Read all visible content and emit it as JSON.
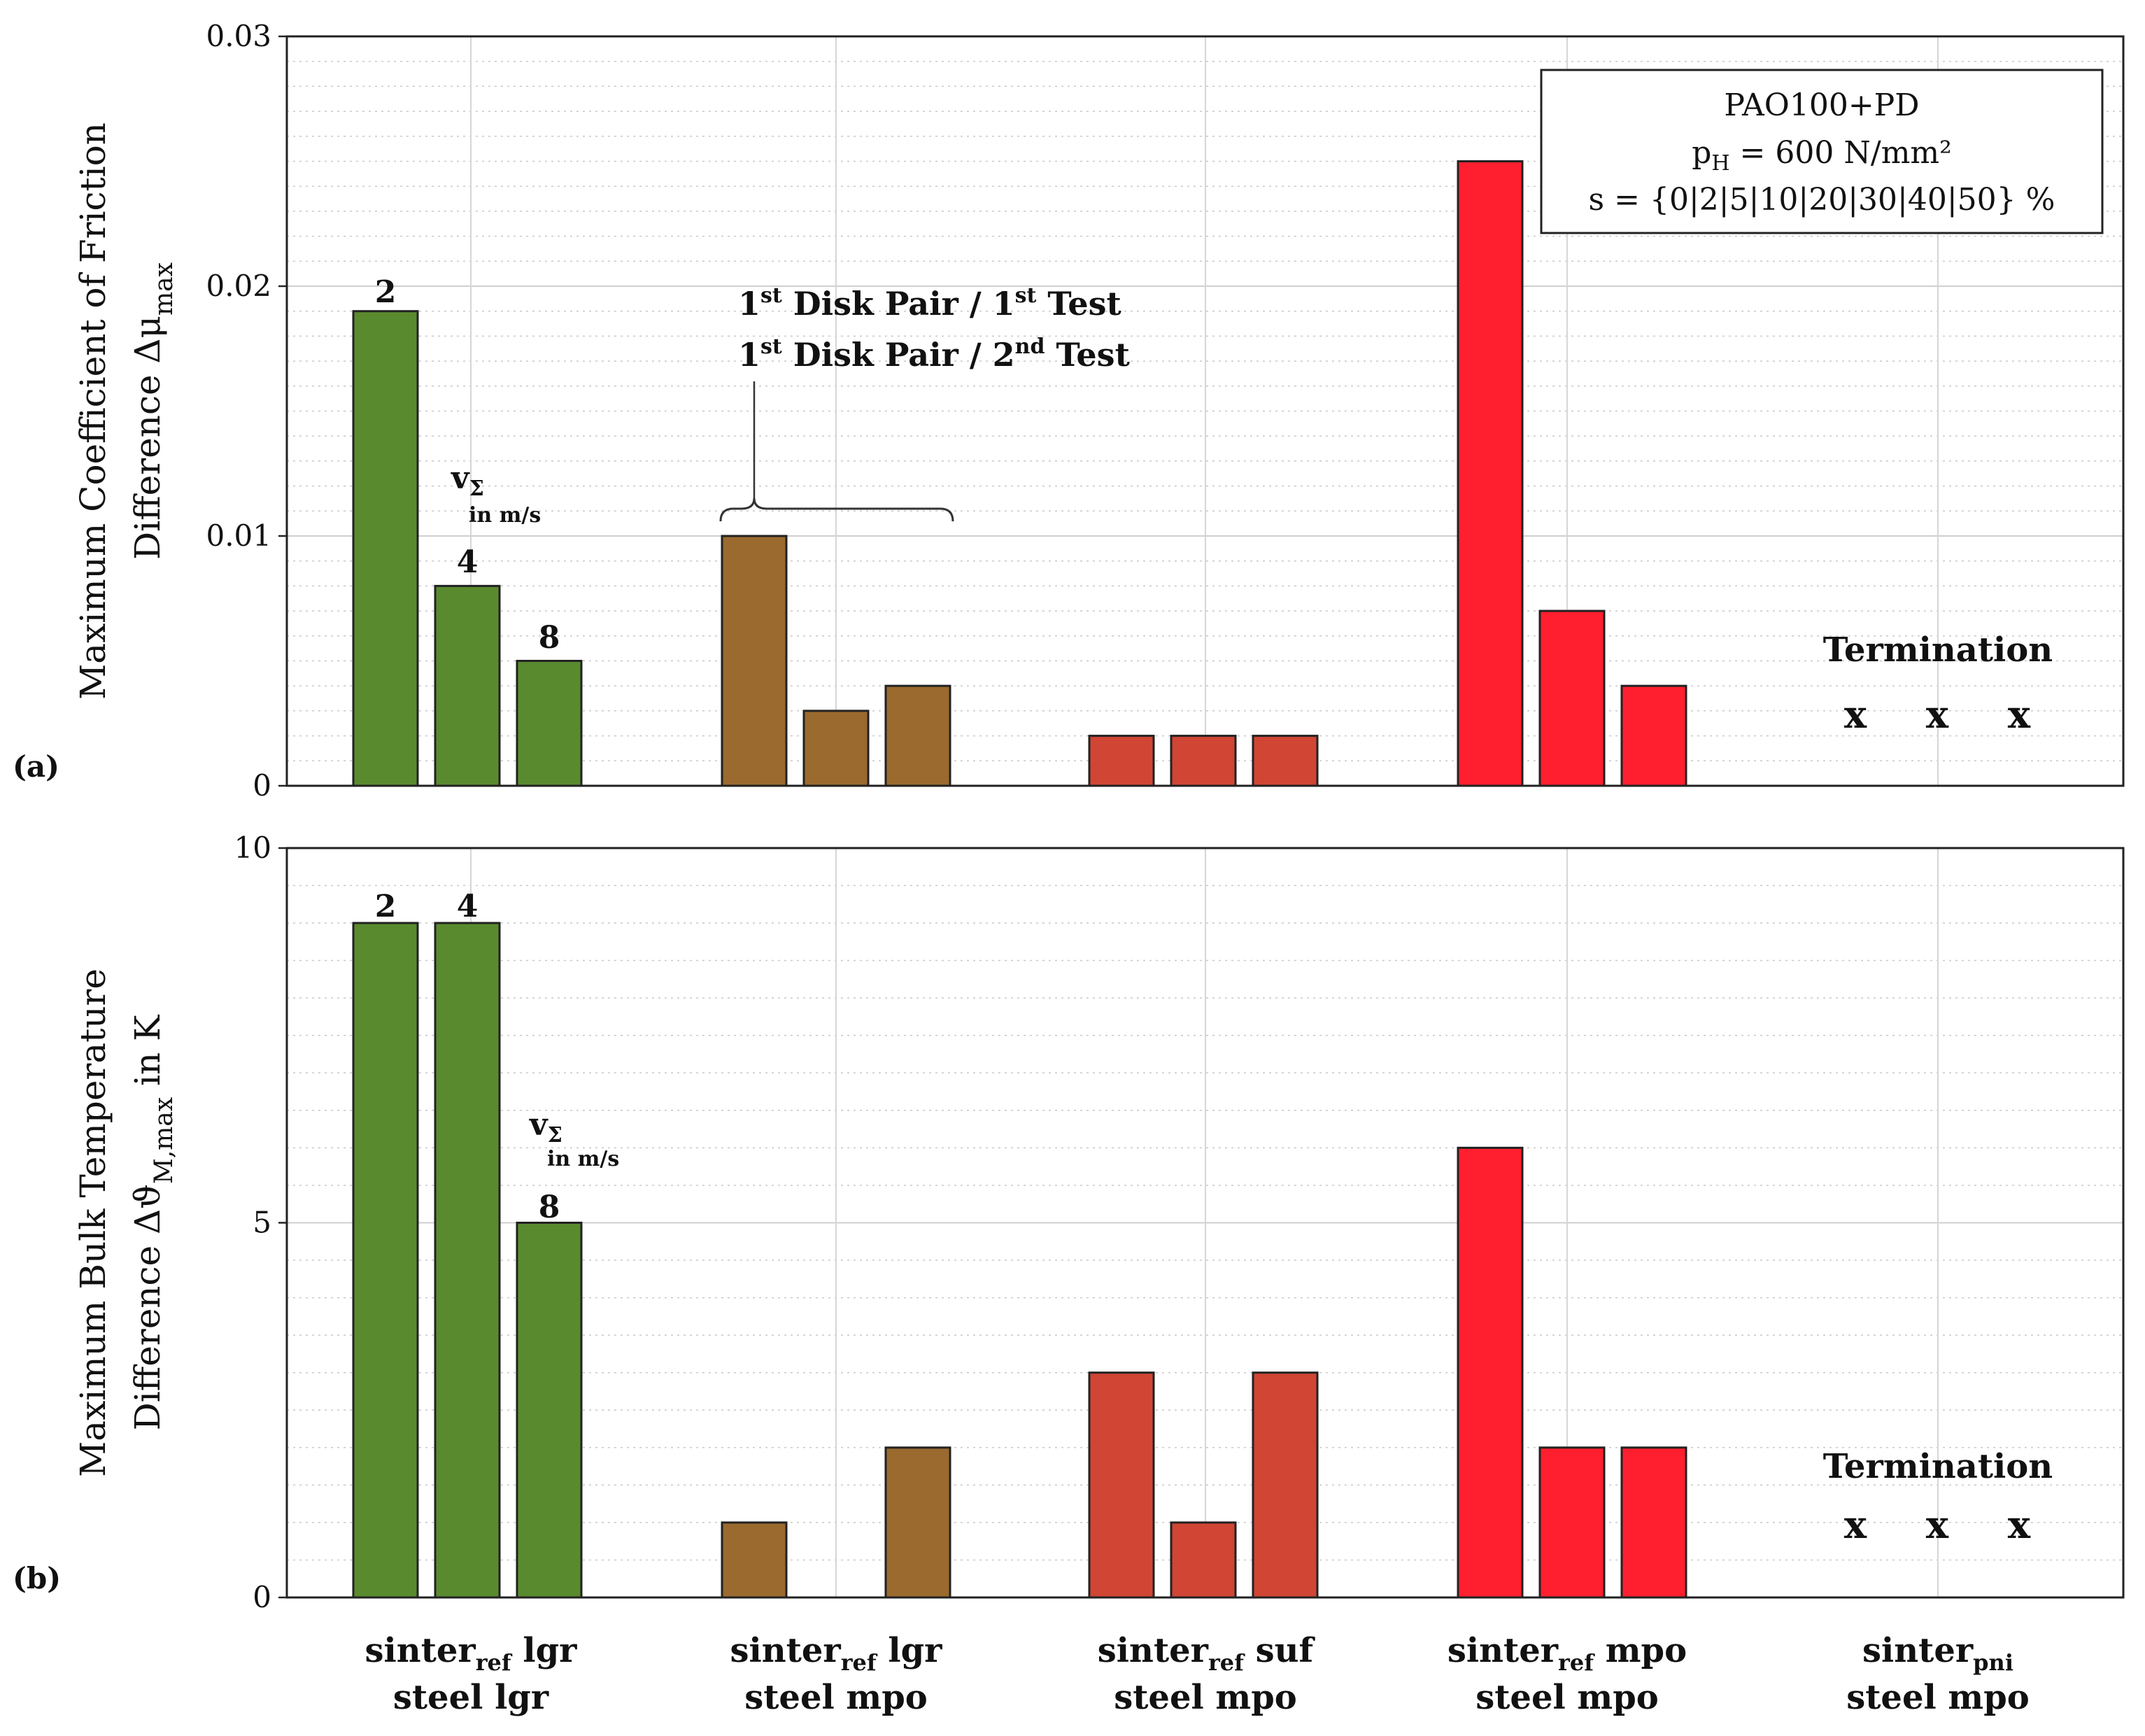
{
  "chart_data": [
    {
      "type": "bar",
      "panel_label": "(a)",
      "ylabel_line1": "Maximum Coefficient of Friction",
      "ylabel_line2_prefix": "Difference Δμ",
      "ylabel_line2_subscript": "max",
      "ylim": [
        0,
        0.03
      ],
      "y_ticks": [
        "0",
        "0.01",
        "0.02",
        "0.03"
      ],
      "y_tick_values": [
        0,
        0.01,
        0.02,
        0.03
      ],
      "groups": [
        {
          "name": "sinter_ref lgr / steel lgr",
          "color": "#5a8a2e",
          "values": [
            0.019,
            0.008,
            0.005
          ]
        },
        {
          "name": "sinter_ref lgr / steel mpo",
          "color": "#9a6a2e",
          "values": [
            0.01,
            0.003,
            0.004
          ]
        },
        {
          "name": "sinter_ref suf / steel mpo",
          "color": "#d04533",
          "values": [
            0.002,
            0.002,
            0.002
          ]
        },
        {
          "name": "sinter_ref mpo / steel mpo",
          "color": "#ff1f2e",
          "values": [
            0.025,
            0.007,
            0.004
          ]
        },
        {
          "name": "sinter_pni / steel mpo",
          "color": "#000000",
          "values": [
            null,
            null,
            null
          ]
        }
      ],
      "bar_labels": [
        "2",
        "4",
        "8"
      ],
      "speed_label": "v",
      "speed_label_sub": "Σ",
      "speed_unit": "in m/s",
      "termination_label": "Termination",
      "termination_marker": "x",
      "legend": {
        "line1": "PAO100+PD",
        "line2_prefix": "p",
        "line2_sub": "H",
        "line2_suffix": " = 600 N/mm²",
        "line3": "s = {0|2|5|10|20|30|40|50} %"
      },
      "test_annotation": {
        "line1": [
          "1",
          "st",
          " Disk Pair / 1",
          "st",
          " Test"
        ],
        "line2": [
          "1",
          "st",
          " Disk Pair / 2",
          "nd",
          " Test"
        ]
      }
    },
    {
      "type": "bar",
      "panel_label": "(b)",
      "ylabel_line1": "Maximum Bulk Temperature",
      "ylabel_line2_prefix": "Difference Δϑ",
      "ylabel_line2_subscript": "M,max",
      "ylabel_line2_suffix": " in K",
      "ylim": [
        0,
        10
      ],
      "y_ticks": [
        "0",
        "5",
        "10"
      ],
      "y_tick_values": [
        0,
        5,
        10
      ],
      "groups": [
        {
          "name": "sinter_ref lgr / steel lgr",
          "color": "#5a8a2e",
          "values": [
            9,
            9,
            5
          ]
        },
        {
          "name": "sinter_ref lgr / steel mpo",
          "color": "#9a6a2e",
          "values": [
            1,
            0,
            2
          ]
        },
        {
          "name": "sinter_ref suf / steel mpo",
          "color": "#d04533",
          "values": [
            3,
            1,
            3
          ]
        },
        {
          "name": "sinter_ref mpo / steel mpo",
          "color": "#ff1f2e",
          "values": [
            6,
            2,
            2
          ]
        },
        {
          "name": "sinter_pni / steel mpo",
          "color": "#000000",
          "values": [
            null,
            null,
            null
          ]
        }
      ],
      "bar_labels": [
        "2",
        "4",
        "8"
      ],
      "speed_label": "v",
      "speed_label_sub": "Σ",
      "speed_unit": "in m/s",
      "termination_label": "Termination",
      "termination_marker": "x"
    }
  ],
  "x_categories": [
    {
      "line1_main": "sinter",
      "line1_sub": "ref",
      "line1_rest": " lgr",
      "line2": "steel lgr"
    },
    {
      "line1_main": "sinter",
      "line1_sub": "ref",
      "line1_rest": " lgr",
      "line2": "steel mpo"
    },
    {
      "line1_main": "sinter",
      "line1_sub": "ref",
      "line1_rest": " suf",
      "line2": "steel mpo"
    },
    {
      "line1_main": "sinter",
      "line1_sub": "ref",
      "line1_rest": " mpo",
      "line2": "steel mpo"
    },
    {
      "line1_main": "sinter",
      "line1_sub": "pni",
      "line1_rest": "",
      "line2": "steel mpo"
    }
  ]
}
